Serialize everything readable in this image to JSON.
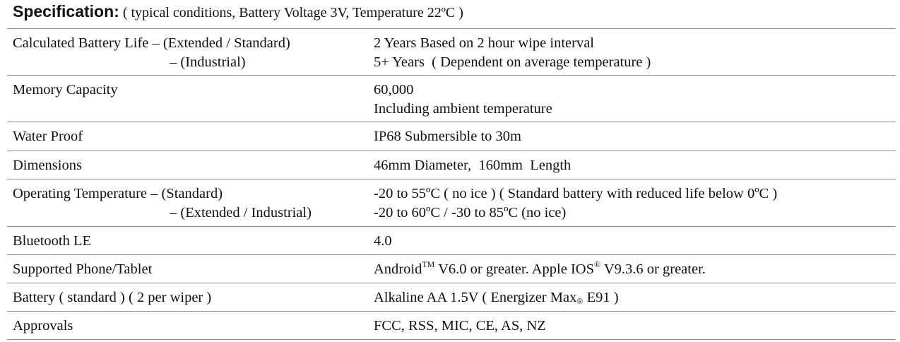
{
  "header": {
    "title": "Specification:",
    "subtitle": "( typical conditions, Battery Voltage 3V, Temperature 22ºC )"
  },
  "table": {
    "rows": [
      {
        "label": [
          "Calculated Battery Life – (Extended / Standard)",
          "– (Industrial)"
        ],
        "value": [
          [
            "2 Years Based on 2 hour wipe interval"
          ],
          [
            "5+ Years  ( Dependent on average temperature )"
          ]
        ]
      },
      {
        "label": [
          "Memory Capacity"
        ],
        "value": [
          [
            "60,000"
          ],
          [
            "Including ambient temperature"
          ]
        ]
      },
      {
        "label": [
          "Water Proof"
        ],
        "value": [
          [
            "IP68 Submersible to 30m"
          ]
        ]
      },
      {
        "label": [
          "Dimensions"
        ],
        "value": [
          [
            "46mm Diameter,  160mm  Length"
          ]
        ]
      },
      {
        "label": [
          "Operating Temperature – (Standard)",
          "– (Extended / Industrial)"
        ],
        "value": [
          [
            "-20 to 55ºC ( no ice ) ( Standard battery with reduced life below 0ºC )"
          ],
          [
            "-20 to 60ºC / -30 to 85ºC (no ice)"
          ]
        ]
      },
      {
        "label": [
          "Bluetooth LE"
        ],
        "value": [
          [
            "4.0"
          ]
        ]
      },
      {
        "label": [
          "Supported Phone/Tablet"
        ],
        "value": [
          [
            "Android",
            {
              "sup": "TM"
            },
            " V6.0 or greater. Apple IOS",
            {
              "sup": "®"
            },
            " V9.3.6 or greater."
          ]
        ]
      },
      {
        "label": [
          "Battery  ( standard ) ( 2 per wiper  )"
        ],
        "value": [
          [
            "Alkaline AA 1.5V ( Energizer Max",
            {
              "sub": "®"
            },
            " E91 )"
          ]
        ]
      },
      {
        "label": [
          "Approvals"
        ],
        "value": [
          [
            "FCC, RSS, MIC, CE, AS, NZ"
          ]
        ]
      }
    ]
  }
}
